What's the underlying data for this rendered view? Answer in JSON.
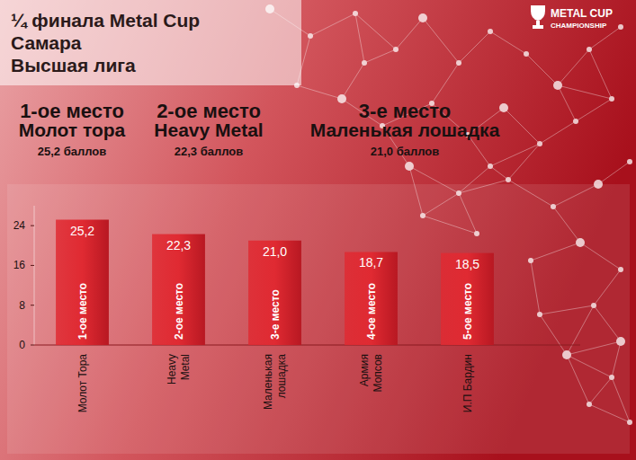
{
  "chart_data": {
    "type": "bar",
    "title": [
      "¼ финала Metal Cup",
      "Самара",
      "Высшая лига"
    ],
    "logo": [
      "METAL CUP",
      "CHAMPIONSHIP"
    ],
    "headers": [
      {
        "place": "1-ое место",
        "team": "Молот тора",
        "score": "25,2 баллов"
      },
      {
        "place": "2-ое место",
        "team": "Heavy Metal",
        "score": "22,3 баллов"
      },
      {
        "place": "3-е место",
        "team": "Маленькая лошадка",
        "score": "21,0 баллов"
      }
    ],
    "categories": [
      "Молот Тора",
      "Heavy Metal",
      "Маленькая лошадка",
      "Армия Мопсов",
      "И.П Бардин"
    ],
    "values": [
      25.2,
      22.3,
      21.0,
      18.7,
      18.5
    ],
    "value_labels": [
      "25,2",
      "22,3",
      "21,0",
      "18,7",
      "18,5"
    ],
    "annotations": [
      "1-ое место",
      "2-ое место",
      "3-е место",
      "4-ое место",
      "5-ое место"
    ],
    "color": "#e02a32",
    "ylim": [
      0,
      28
    ],
    "yticks": [
      0,
      8,
      16,
      24
    ],
    "grid": false,
    "data_labels": true
  }
}
